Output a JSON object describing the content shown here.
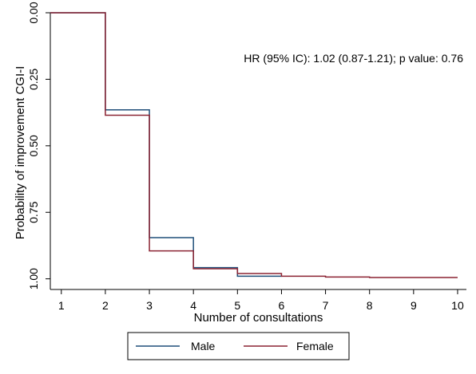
{
  "chart_data": {
    "type": "line",
    "step": true,
    "xlabel": "Number of consultations",
    "ylabel": "Probability of improvement CGI-I",
    "xlim": [
      0.75,
      10.2
    ],
    "ylim": [
      0.0,
      1.04
    ],
    "y_inverted": true,
    "x_ticks": [
      1,
      2,
      3,
      4,
      5,
      6,
      7,
      8,
      9,
      10
    ],
    "y_ticks": [
      0.0,
      0.25,
      0.5,
      0.75,
      1.0
    ],
    "y_tick_labels": [
      "0.00",
      "0.25",
      "0.50",
      "0.75",
      "1.00"
    ],
    "grid": false,
    "annotation": "HR (95% IC): 1.02 (0.87-1.21); p value: 0.76",
    "legend": {
      "position": "bottom"
    },
    "series": [
      {
        "name": "Male",
        "color": "#1f4e79",
        "x": [
          0.75,
          2,
          3,
          4,
          5,
          6
        ],
        "y": [
          0.0,
          0.365,
          0.845,
          0.958,
          0.99,
          0.99
        ]
      },
      {
        "name": "Female",
        "color": "#8b2332",
        "x": [
          0.75,
          2,
          3,
          4,
          5,
          6,
          7,
          8,
          10
        ],
        "y": [
          0.0,
          0.385,
          0.895,
          0.962,
          0.98,
          0.99,
          0.993,
          0.995,
          0.995
        ]
      }
    ]
  }
}
